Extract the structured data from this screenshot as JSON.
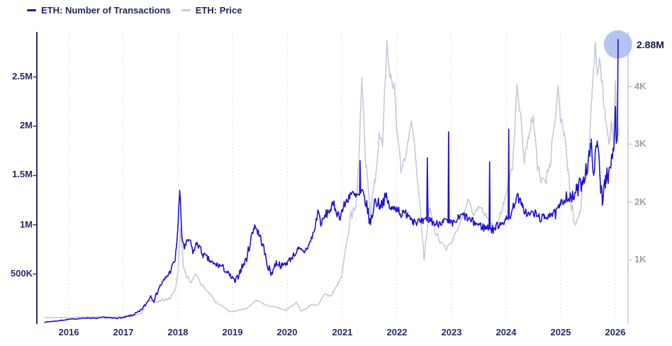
{
  "chart_data": {
    "type": "line",
    "legend_position": "top-left",
    "grid": "vertical-dotted-per-year",
    "colors": {
      "transactions_line": "#2014c9",
      "price_line": "#c6c9da",
      "left_axis": "#2f3367",
      "right_axis": "#c6c9da",
      "gridline": "#c9ccd9",
      "highlight_circle": "#a7bbf0",
      "tick_text_left": "#262c63",
      "tick_text_right": "#9a9eb4",
      "legend_text": "#21265b",
      "annotation_text": "#131944"
    },
    "x_axis": {
      "ticks": [
        "2016",
        "2017",
        "2018",
        "2019",
        "2020",
        "2021",
        "2022",
        "2023",
        "2024",
        "2025",
        "2026"
      ],
      "tick_values": [
        2016,
        2017,
        2018,
        2019,
        2020,
        2021,
        2022,
        2023,
        2024,
        2025,
        2026
      ],
      "range": [
        2015.56,
        2026.25
      ]
    },
    "y_axis_left": {
      "ticks": [
        "2.5M",
        "2M",
        "1.5M",
        "1M",
        "500K"
      ],
      "tick_values_millions": [
        2.5,
        2,
        1.5,
        1,
        0.5
      ],
      "range_millions": [
        0,
        2.96
      ]
    },
    "y_axis_right": {
      "ticks": [
        "4K",
        "3K",
        "2K",
        "1K"
      ],
      "tick_values_thousands": [
        4,
        3,
        2,
        1
      ],
      "range_thousands": [
        0,
        4.94
      ]
    },
    "annotation": {
      "label": "2.88M",
      "x_year": 2026.05,
      "value_millions": 2.88
    },
    "series": [
      {
        "name": "ETH: Number of Transactions",
        "axis": "left",
        "unit": "millions",
        "color": "#2014c9",
        "points": [
          [
            2015.56,
            0.012
          ],
          [
            2015.8,
            0.025
          ],
          [
            2016.0,
            0.04
          ],
          [
            2016.2,
            0.048
          ],
          [
            2016.35,
            0.055
          ],
          [
            2016.5,
            0.05
          ],
          [
            2016.65,
            0.06
          ],
          [
            2016.8,
            0.052
          ],
          [
            2017.0,
            0.058
          ],
          [
            2017.15,
            0.08
          ],
          [
            2017.3,
            0.12
          ],
          [
            2017.42,
            0.2
          ],
          [
            2017.5,
            0.28
          ],
          [
            2017.56,
            0.23
          ],
          [
            2017.65,
            0.36
          ],
          [
            2017.75,
            0.44
          ],
          [
            2017.85,
            0.52
          ],
          [
            2017.95,
            0.65
          ],
          [
            2018.0,
            1.0
          ],
          [
            2018.03,
            1.35
          ],
          [
            2018.07,
            0.88
          ],
          [
            2018.12,
            0.76
          ],
          [
            2018.2,
            0.85
          ],
          [
            2018.28,
            0.72
          ],
          [
            2018.35,
            0.82
          ],
          [
            2018.45,
            0.7
          ],
          [
            2018.55,
            0.65
          ],
          [
            2018.65,
            0.6
          ],
          [
            2018.8,
            0.58
          ],
          [
            2018.95,
            0.48
          ],
          [
            2019.05,
            0.42
          ],
          [
            2019.15,
            0.55
          ],
          [
            2019.25,
            0.65
          ],
          [
            2019.33,
            0.85
          ],
          [
            2019.4,
            1.0
          ],
          [
            2019.47,
            0.92
          ],
          [
            2019.55,
            0.8
          ],
          [
            2019.62,
            0.62
          ],
          [
            2019.7,
            0.5
          ],
          [
            2019.8,
            0.62
          ],
          [
            2019.9,
            0.58
          ],
          [
            2020.0,
            0.62
          ],
          [
            2020.1,
            0.68
          ],
          [
            2020.2,
            0.75
          ],
          [
            2020.3,
            0.72
          ],
          [
            2020.4,
            0.8
          ],
          [
            2020.5,
            0.95
          ],
          [
            2020.56,
            1.15
          ],
          [
            2020.62,
            1.0
          ],
          [
            2020.7,
            1.1
          ],
          [
            2020.85,
            1.2
          ],
          [
            2020.95,
            1.08
          ],
          [
            2021.05,
            1.2
          ],
          [
            2021.15,
            1.32
          ],
          [
            2021.25,
            1.28
          ],
          [
            2021.32,
            1.3
          ],
          [
            2021.33,
            1.65
          ],
          [
            2021.34,
            1.32
          ],
          [
            2021.4,
            1.3
          ],
          [
            2021.48,
            1.12
          ],
          [
            2021.52,
            1.0
          ],
          [
            2021.6,
            1.25
          ],
          [
            2021.7,
            1.2
          ],
          [
            2021.8,
            1.28
          ],
          [
            2021.9,
            1.15
          ],
          [
            2022.0,
            1.18
          ],
          [
            2022.1,
            1.1
          ],
          [
            2022.2,
            1.12
          ],
          [
            2022.3,
            1.05
          ],
          [
            2022.45,
            1.02
          ],
          [
            2022.55,
            1.04
          ],
          [
            2022.56,
            1.68
          ],
          [
            2022.575,
            1.04
          ],
          [
            2022.62,
            1.05
          ],
          [
            2022.72,
            1.0
          ],
          [
            2022.85,
            1.05
          ],
          [
            2022.94,
            1.02
          ],
          [
            2022.95,
            1.94
          ],
          [
            2022.96,
            1.02
          ],
          [
            2023.02,
            1.0
          ],
          [
            2023.12,
            1.06
          ],
          [
            2023.22,
            1.1
          ],
          [
            2023.35,
            1.04
          ],
          [
            2023.5,
            1.0
          ],
          [
            2023.6,
            0.97
          ],
          [
            2023.69,
            0.97
          ],
          [
            2023.7,
            1.64
          ],
          [
            2023.71,
            0.96
          ],
          [
            2023.76,
            0.95
          ],
          [
            2023.9,
            1.02
          ],
          [
            2024.0,
            1.05
          ],
          [
            2024.04,
            1.05
          ],
          [
            2024.05,
            1.97
          ],
          [
            2024.06,
            1.08
          ],
          [
            2024.1,
            1.12
          ],
          [
            2024.2,
            1.3
          ],
          [
            2024.3,
            1.18
          ],
          [
            2024.4,
            1.1
          ],
          [
            2024.5,
            1.12
          ],
          [
            2024.6,
            1.08
          ],
          [
            2024.7,
            1.06
          ],
          [
            2024.8,
            1.12
          ],
          [
            2024.9,
            1.1
          ],
          [
            2025.0,
            1.2
          ],
          [
            2025.1,
            1.3
          ],
          [
            2025.2,
            1.25
          ],
          [
            2025.3,
            1.35
          ],
          [
            2025.4,
            1.45
          ],
          [
            2025.5,
            1.62
          ],
          [
            2025.56,
            1.78
          ],
          [
            2025.62,
            1.55
          ],
          [
            2025.67,
            1.85
          ],
          [
            2025.72,
            1.5
          ],
          [
            2025.76,
            1.28
          ],
          [
            2025.82,
            1.5
          ],
          [
            2025.87,
            1.42
          ],
          [
            2025.92,
            1.6
          ],
          [
            2025.97,
            1.75
          ],
          [
            2026.0,
            2.2
          ],
          [
            2026.02,
            1.85
          ],
          [
            2026.04,
            1.95
          ],
          [
            2026.05,
            2.88
          ]
        ],
        "noise_envelope": [
          [
            2015.56,
            0.003
          ],
          [
            2016.5,
            0.005
          ],
          [
            2017.0,
            0.007
          ],
          [
            2017.5,
            0.018
          ],
          [
            2017.9,
            0.03
          ],
          [
            2018.05,
            0.05
          ],
          [
            2018.5,
            0.035
          ],
          [
            2019.0,
            0.03
          ],
          [
            2019.4,
            0.05
          ],
          [
            2020.0,
            0.03
          ],
          [
            2020.6,
            0.045
          ],
          [
            2021.0,
            0.055
          ],
          [
            2021.5,
            0.065
          ],
          [
            2022.0,
            0.055
          ],
          [
            2022.5,
            0.045
          ],
          [
            2023.0,
            0.045
          ],
          [
            2023.5,
            0.045
          ],
          [
            2024.0,
            0.045
          ],
          [
            2024.5,
            0.05
          ],
          [
            2025.0,
            0.055
          ],
          [
            2025.4,
            0.09
          ],
          [
            2025.7,
            0.13
          ],
          [
            2025.9,
            0.12
          ],
          [
            2026.05,
            0.08
          ]
        ]
      },
      {
        "name": "ETH: Price",
        "axis": "right",
        "unit": "thousands_usd",
        "color": "#c6c9da",
        "points": [
          [
            2015.56,
            0.001
          ],
          [
            2016.0,
            0.002
          ],
          [
            2016.2,
            0.01
          ],
          [
            2016.5,
            0.013
          ],
          [
            2016.75,
            0.011
          ],
          [
            2017.0,
            0.009
          ],
          [
            2017.2,
            0.035
          ],
          [
            2017.33,
            0.07
          ],
          [
            2017.45,
            0.3
          ],
          [
            2017.55,
            0.26
          ],
          [
            2017.7,
            0.3
          ],
          [
            2017.85,
            0.33
          ],
          [
            2017.95,
            0.5
          ],
          [
            2018.0,
            0.8
          ],
          [
            2018.04,
            1.55
          ],
          [
            2018.1,
            0.85
          ],
          [
            2018.17,
            0.7
          ],
          [
            2018.25,
            0.62
          ],
          [
            2018.33,
            0.75
          ],
          [
            2018.45,
            0.55
          ],
          [
            2018.55,
            0.45
          ],
          [
            2018.68,
            0.28
          ],
          [
            2018.8,
            0.21
          ],
          [
            2018.95,
            0.1
          ],
          [
            2019.1,
            0.13
          ],
          [
            2019.25,
            0.16
          ],
          [
            2019.37,
            0.25
          ],
          [
            2019.45,
            0.3
          ],
          [
            2019.55,
            0.24
          ],
          [
            2019.7,
            0.19
          ],
          [
            2019.85,
            0.17
          ],
          [
            2019.97,
            0.12
          ],
          [
            2020.1,
            0.21
          ],
          [
            2020.17,
            0.26
          ],
          [
            2020.25,
            0.11
          ],
          [
            2020.4,
            0.2
          ],
          [
            2020.55,
            0.23
          ],
          [
            2020.68,
            0.4
          ],
          [
            2020.8,
            0.37
          ],
          [
            2020.92,
            0.6
          ],
          [
            2021.0,
            0.75
          ],
          [
            2021.08,
            1.3
          ],
          [
            2021.15,
            1.75
          ],
          [
            2021.25,
            1.9
          ],
          [
            2021.3,
            2.6
          ],
          [
            2021.36,
            4.15
          ],
          [
            2021.44,
            2.6
          ],
          [
            2021.52,
            1.75
          ],
          [
            2021.6,
            2.4
          ],
          [
            2021.68,
            3.2
          ],
          [
            2021.74,
            2.95
          ],
          [
            2021.82,
            4.8
          ],
          [
            2021.88,
            4.15
          ],
          [
            2021.95,
            4.0
          ],
          [
            2022.0,
            3.3
          ],
          [
            2022.08,
            2.5
          ],
          [
            2022.18,
            2.85
          ],
          [
            2022.27,
            3.4
          ],
          [
            2022.35,
            2.7
          ],
          [
            2022.44,
            1.75
          ],
          [
            2022.5,
            1.0
          ],
          [
            2022.6,
            1.9
          ],
          [
            2022.7,
            1.5
          ],
          [
            2022.8,
            1.3
          ],
          [
            2022.92,
            1.18
          ],
          [
            2023.05,
            1.4
          ],
          [
            2023.15,
            1.6
          ],
          [
            2023.3,
            2.05
          ],
          [
            2023.4,
            1.8
          ],
          [
            2023.5,
            1.9
          ],
          [
            2023.62,
            1.8
          ],
          [
            2023.75,
            1.6
          ],
          [
            2023.85,
            1.58
          ],
          [
            2023.95,
            2.0
          ],
          [
            2024.05,
            2.35
          ],
          [
            2024.12,
            2.6
          ],
          [
            2024.2,
            4.0
          ],
          [
            2024.28,
            3.4
          ],
          [
            2024.33,
            2.75
          ],
          [
            2024.42,
            3.1
          ],
          [
            2024.5,
            3.5
          ],
          [
            2024.58,
            2.6
          ],
          [
            2024.65,
            2.4
          ],
          [
            2024.72,
            2.35
          ],
          [
            2024.8,
            2.6
          ],
          [
            2024.88,
            3.3
          ],
          [
            2024.95,
            4.0
          ],
          [
            2025.0,
            3.4
          ],
          [
            2025.07,
            3.2
          ],
          [
            2025.13,
            2.6
          ],
          [
            2025.2,
            1.9
          ],
          [
            2025.27,
            1.6
          ],
          [
            2025.35,
            1.8
          ],
          [
            2025.42,
            2.4
          ],
          [
            2025.5,
            2.55
          ],
          [
            2025.56,
            3.7
          ],
          [
            2025.6,
            4.3
          ],
          [
            2025.63,
            4.75
          ],
          [
            2025.67,
            4.2
          ],
          [
            2025.71,
            4.5
          ],
          [
            2025.76,
            4.1
          ],
          [
            2025.82,
            3.4
          ],
          [
            2025.88,
            3.0
          ],
          [
            2025.93,
            3.4
          ],
          [
            2025.97,
            3.0
          ],
          [
            2026.0,
            4.1
          ],
          [
            2026.03,
            3.4
          ],
          [
            2026.07,
            3.15
          ]
        ],
        "noise_envelope": [
          [
            2015.56,
            0.001
          ],
          [
            2016.8,
            0.002
          ],
          [
            2017.3,
            0.01
          ],
          [
            2017.8,
            0.025
          ],
          [
            2018.1,
            0.05
          ],
          [
            2018.6,
            0.025
          ],
          [
            2019.0,
            0.012
          ],
          [
            2020.0,
            0.012
          ],
          [
            2020.8,
            0.03
          ],
          [
            2021.2,
            0.1
          ],
          [
            2021.6,
            0.14
          ],
          [
            2022.0,
            0.13
          ],
          [
            2022.5,
            0.07
          ],
          [
            2023.0,
            0.05
          ],
          [
            2023.5,
            0.05
          ],
          [
            2024.0,
            0.08
          ],
          [
            2024.3,
            0.12
          ],
          [
            2025.0,
            0.12
          ],
          [
            2025.5,
            0.13
          ],
          [
            2025.8,
            0.14
          ],
          [
            2026.07,
            0.1
          ]
        ]
      }
    ]
  }
}
